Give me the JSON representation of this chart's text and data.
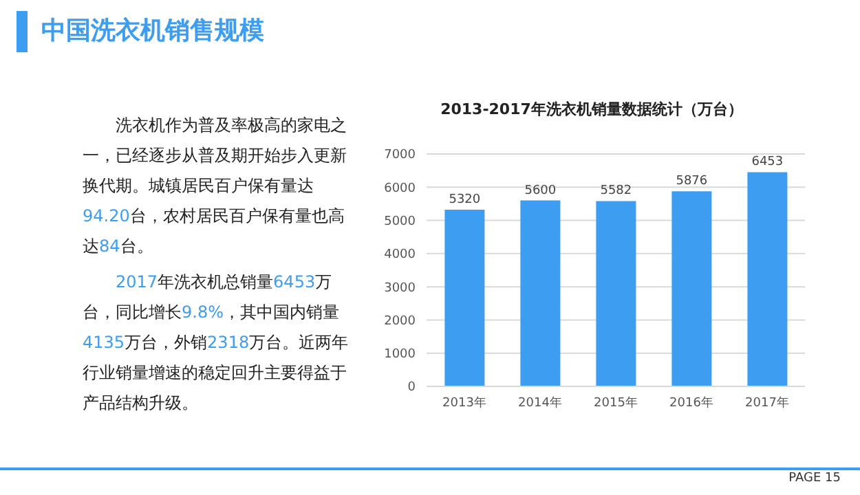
{
  "chart_data": {
    "type": "bar",
    "title": "中国洗衣机销售规模",
    "subtitle": "2013-2017年洗衣机销量数据统计（万台）",
    "categories": [
      "2013年",
      "2014年",
      "2015年",
      "2016年",
      "2017年"
    ],
    "values": [
      5320,
      5600,
      5582,
      5876,
      6453
    ],
    "color": "#3d9df0",
    "ylim": [
      0,
      7000
    ],
    "yticks": [
      0,
      1000,
      2000,
      3000,
      4000,
      5000,
      6000,
      7000
    ],
    "grid": "y",
    "data_labels": true,
    "annotations": [
      "洗衣机作为普及率极高的家电之一，已经逐步从普及期开始步入更新换代期。城镇居民百户保有量达94.20台，农村居民百户保有量也高达84台。",
      "2017年洗衣机总销量6453万台，同比增长9.8%，其中国内销量4135万台，外销2318万台。近两年行业销量增速的稳定回升主要得益于产品结构升级。",
      "PAGE 15"
    ]
  }
}
